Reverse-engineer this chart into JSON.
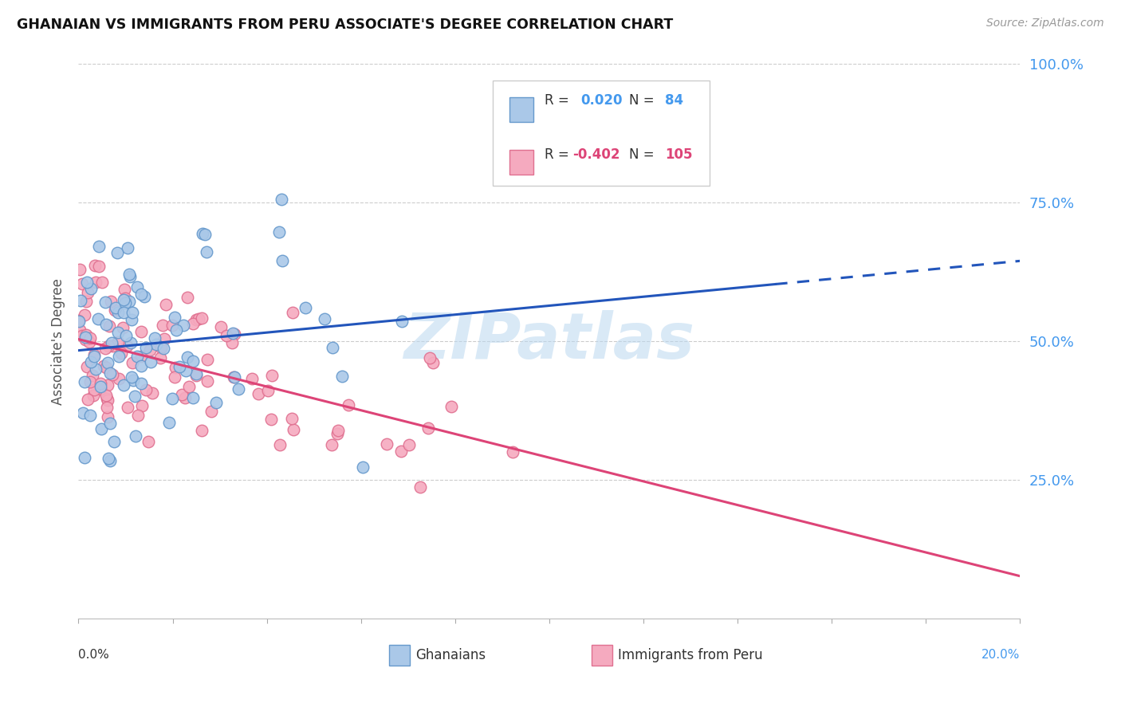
{
  "title": "GHANAIAN VS IMMIGRANTS FROM PERU ASSOCIATE'S DEGREE CORRELATION CHART",
  "source": "Source: ZipAtlas.com",
  "ylabel": "Associate's Degree",
  "xlim": [
    0.0,
    0.2
  ],
  "ylim": [
    0.0,
    1.0
  ],
  "blue_color": "#aac8e8",
  "blue_edge": "#6699cc",
  "pink_color": "#f5aabf",
  "pink_edge": "#e07090",
  "blue_line_color": "#2255bb",
  "pink_line_color": "#dd4477",
  "right_axis_color": "#4499ee",
  "watermark": "ZIPatlas",
  "n_blue": 84,
  "n_pink": 105,
  "r_blue": 0.02,
  "r_pink": -0.402
}
